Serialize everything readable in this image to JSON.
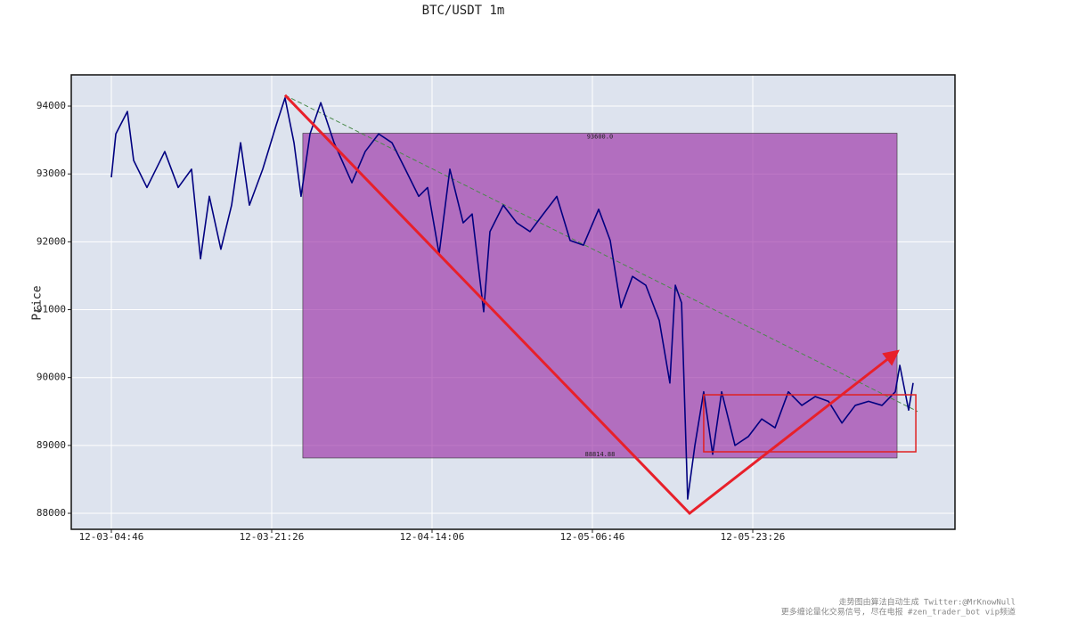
{
  "chart_data": {
    "type": "line",
    "title": "BTC/USDT 1m",
    "y_label": "Price",
    "footer": [
      "走势图由算法自动生成  Twitter:@MrKnowNull",
      "更多缠论量化交易信号, 尽在电报 #zen_trader_bot vip频道"
    ],
    "x": [
      0,
      28,
      100,
      139,
      222,
      333,
      417,
      500,
      556,
      611,
      683,
      750,
      806,
      861,
      944,
      1028,
      1083,
      1139,
      1183,
      1239,
      1306,
      1389,
      1500,
      1583,
      1667,
      1750,
      1833,
      1917,
      1972,
      2044,
      2111,
      2194,
      2250,
      2322,
      2361,
      2444,
      2528,
      2611,
      2694,
      2778,
      2861,
      2944,
      3039,
      3111,
      3178,
      3250,
      3333,
      3417,
      3483,
      3517,
      3556,
      3594,
      3639,
      3694,
      3750,
      3806,
      3889,
      3972,
      4056,
      4139,
      4222,
      4306,
      4389,
      4472,
      4556,
      4639,
      4722,
      4806,
      4889,
      4917,
      4972,
      5000
    ],
    "values": [
      92950,
      93590,
      93920,
      93200,
      92800,
      93330,
      92800,
      93070,
      91750,
      92670,
      91890,
      92540,
      93460,
      92540,
      93070,
      93720,
      94120,
      93460,
      92670,
      93590,
      94050,
      93460,
      92870,
      93330,
      93590,
      93460,
      93070,
      92670,
      92800,
      91820,
      93070,
      92280,
      92410,
      90970,
      92150,
      92540,
      92280,
      92150,
      92410,
      92670,
      92020,
      91950,
      92480,
      92020,
      91030,
      91490,
      91360,
      90840,
      89920,
      91360,
      91100,
      88210,
      89000,
      89790,
      88870,
      89790,
      89000,
      89130,
      89390,
      89260,
      89790,
      89590,
      89720,
      89650,
      89330,
      89590,
      89650,
      89590,
      89790,
      90180,
      89520,
      89920
    ],
    "color": "#000080",
    "xlim": [
      -250,
      5261
    ],
    "ylim": [
      87764,
      94460
    ],
    "xticks": [
      {
        "value": 0,
        "label": "12-03-04:46"
      },
      {
        "value": 1000,
        "label": "12-03-21:26"
      },
      {
        "value": 2000,
        "label": "12-04-14:06"
      },
      {
        "value": 3000,
        "label": "12-05-06:46"
      },
      {
        "value": 4000,
        "label": "12-05-23:26"
      }
    ],
    "yticks": [
      88000,
      89000,
      90000,
      91000,
      92000,
      93000,
      94000
    ],
    "grid": true,
    "zone": {
      "x": [
        1194,
        4900
      ],
      "top": {
        "value": 93600,
        "label": "93600.0"
      },
      "bottom": 88814.88,
      "color": "#9b2fa6"
    },
    "box": {
      "x": [
        3694,
        5017
      ],
      "y": [
        88906,
        89746
      ],
      "color": "#e02020"
    },
    "trend": {
      "x": [
        1083,
        5028
      ],
      "y": [
        94160,
        89500
      ],
      "color": "#4a8a4a"
    },
    "arrow": {
      "x": [
        1083,
        3606,
        4900
      ],
      "y": [
        94160,
        88000,
        90380
      ],
      "color": "#e8202a"
    }
  }
}
